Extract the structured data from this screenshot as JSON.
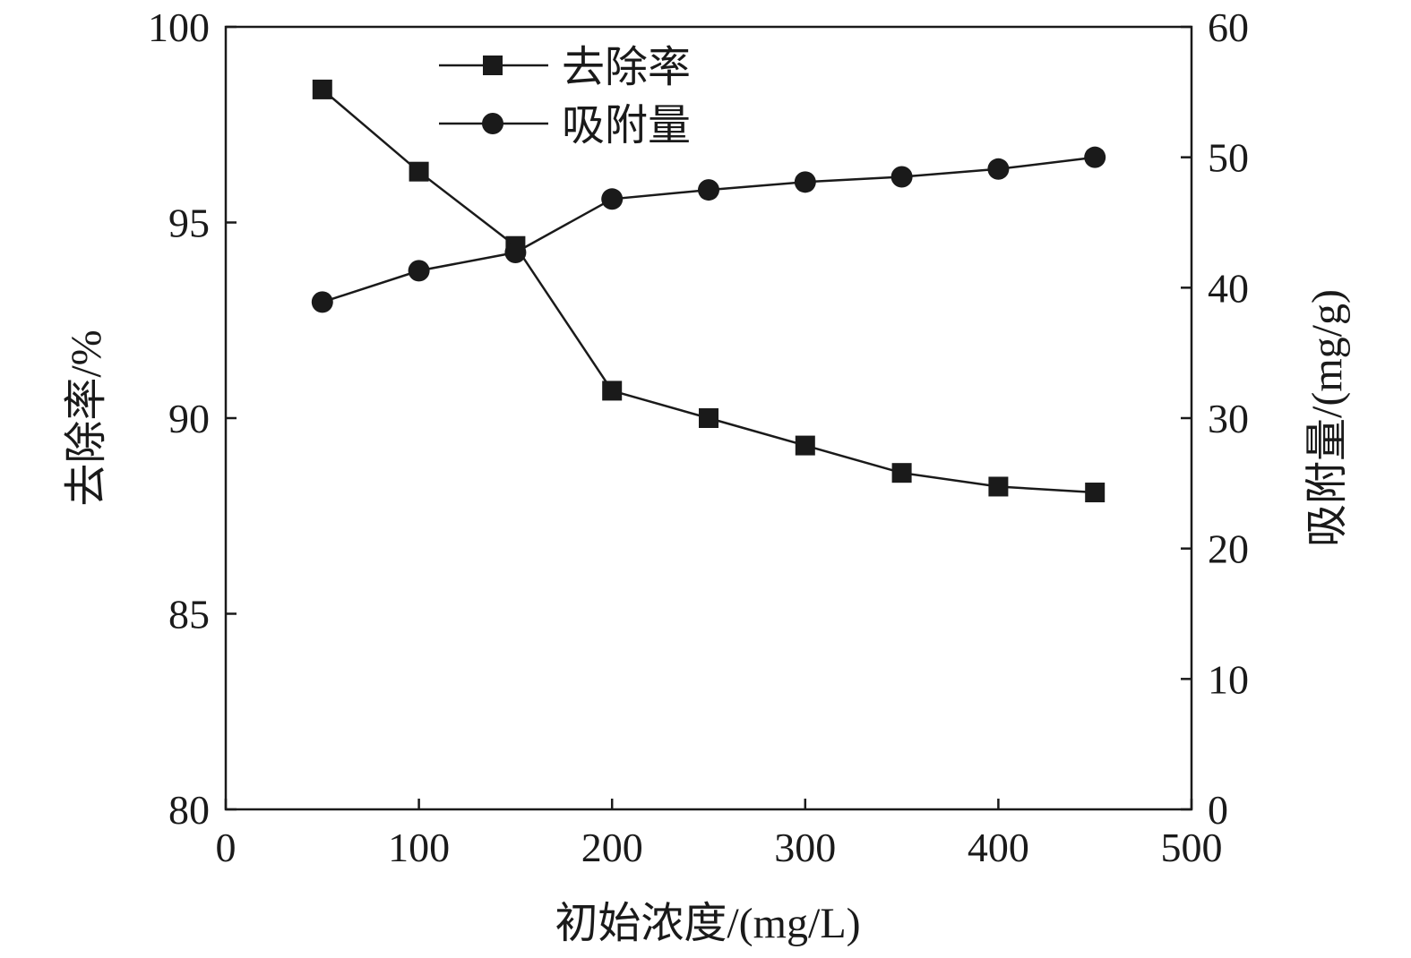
{
  "chart_data": {
    "type": "line",
    "xlabel": "初始浓度/(mg/L)",
    "ylabel_left": "去除率/%",
    "ylabel_right": "吸附量/(mg/g)",
    "xlim": [
      0,
      500
    ],
    "ylim_left": [
      80,
      100
    ],
    "ylim_right": [
      0,
      60
    ],
    "x_ticks": [
      "0",
      "100",
      "200",
      "300",
      "400",
      "500"
    ],
    "y_left_ticks": [
      "80",
      "85",
      "90",
      "95",
      "100"
    ],
    "y_right_ticks": [
      "0",
      "10",
      "20",
      "30",
      "40",
      "50",
      "60"
    ],
    "grid": false,
    "legend_position": "top-left",
    "series": [
      {
        "name": "去除率",
        "axis": "left",
        "marker": "square",
        "color": "#1a1a1a",
        "x": [
          50,
          100,
          150,
          200,
          250,
          300,
          350,
          400,
          450
        ],
        "values": [
          98.4,
          96.3,
          94.4,
          90.7,
          90.0,
          89.3,
          88.6,
          88.25,
          88.1
        ]
      },
      {
        "name": "吸附量",
        "axis": "right",
        "marker": "circle",
        "color": "#1a1a1a",
        "x": [
          50,
          100,
          150,
          200,
          250,
          300,
          350,
          400,
          450
        ],
        "values": [
          38.9,
          41.3,
          42.7,
          46.8,
          47.5,
          48.1,
          48.5,
          49.1,
          50.0
        ]
      }
    ]
  }
}
